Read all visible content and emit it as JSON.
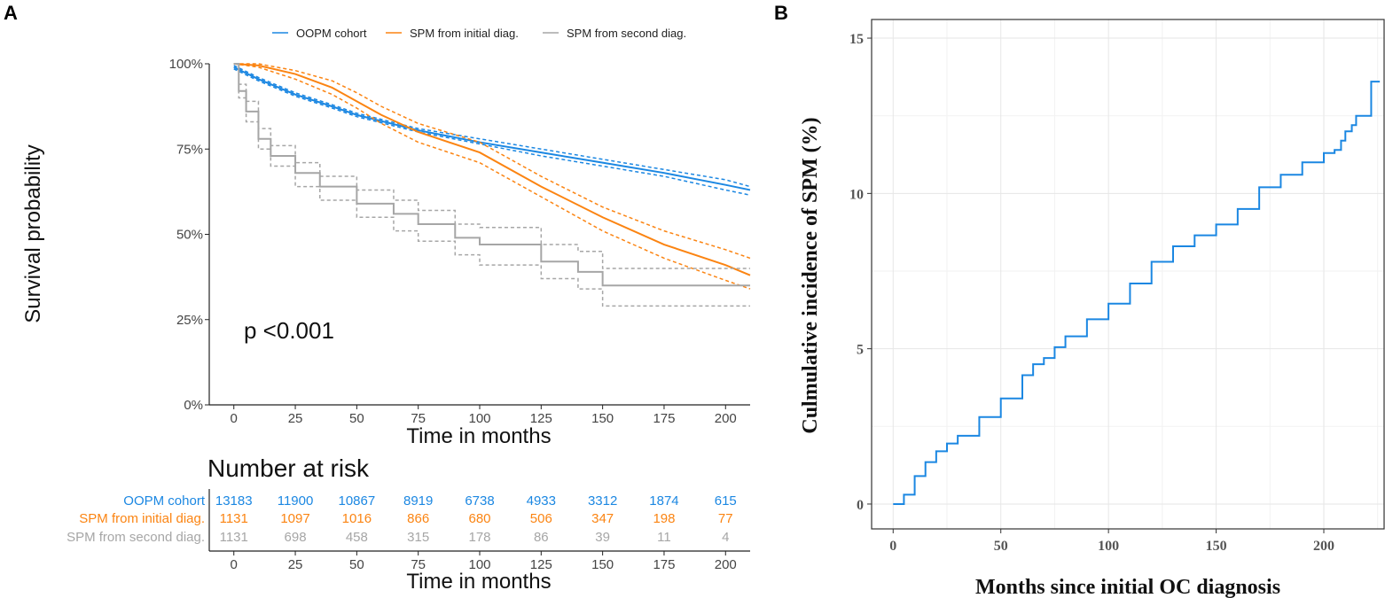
{
  "colors": {
    "oopm": "#1b87e2",
    "initial": "#fb8412",
    "second": "#a6a6a6"
  },
  "chart_data": [
    {
      "panel_label": "A",
      "type": "line",
      "subtype": "kaplan-meier",
      "title": "",
      "xlabel": "Time in months",
      "ylabel": "Survival probability",
      "xlim": [
        -10,
        210
      ],
      "ylim": [
        0,
        100
      ],
      "x_ticks": [
        0,
        25,
        50,
        75,
        100,
        125,
        150,
        175,
        200
      ],
      "y_ticks": [
        0,
        25,
        50,
        75,
        100
      ],
      "y_tick_labels": [
        "0%",
        "25%",
        "50%",
        "75%",
        "100%"
      ],
      "legend": [
        "OOPM cohort",
        "SPM from initial diag.",
        "SPM from second diag."
      ],
      "legend_position": "top",
      "annotation": "p <0.001",
      "series": [
        {
          "name": "OOPM cohort",
          "color_key": "oopm",
          "x": [
            0,
            10,
            25,
            40,
            50,
            75,
            100,
            125,
            150,
            175,
            200,
            210
          ],
          "y": [
            99,
            95.5,
            91,
            87.5,
            85,
            80.5,
            77,
            74,
            71,
            68,
            64.5,
            63
          ],
          "lower": [
            98.5,
            95,
            90.5,
            87,
            84.5,
            80,
            76.5,
            73,
            70,
            67,
            63,
            61.5
          ],
          "upper": [
            99.5,
            96,
            91.5,
            88,
            85.5,
            81,
            78,
            75,
            72,
            69,
            66,
            64
          ]
        },
        {
          "name": "SPM from initial diag.",
          "color_key": "initial",
          "x": [
            0,
            10,
            25,
            40,
            50,
            60,
            75,
            100,
            125,
            150,
            175,
            200,
            210
          ],
          "y": [
            100,
            99.5,
            97,
            93,
            89,
            85,
            80,
            74,
            64,
            55,
            47,
            41,
            38
          ],
          "lower": [
            100,
            99,
            95.5,
            91,
            87,
            82.5,
            77,
            71,
            61,
            51,
            43,
            36.5,
            34
          ],
          "upper": [
            100,
            100,
            98,
            95,
            91.5,
            87.5,
            82.5,
            77,
            67,
            58,
            51,
            45.5,
            43
          ]
        },
        {
          "name": "SPM from second diag.",
          "color_key": "second",
          "x": [
            0,
            2,
            5,
            10,
            15,
            25,
            35,
            50,
            65,
            75,
            90,
            100,
            125,
            140,
            150,
            175,
            200,
            210
          ],
          "y": [
            100,
            92,
            86,
            78,
            73,
            68,
            64,
            59,
            56,
            53,
            49,
            47,
            42,
            39,
            35,
            35,
            35,
            35
          ],
          "lower": [
            100,
            90,
            83,
            75,
            70,
            64,
            60,
            55,
            51,
            48,
            44,
            41,
            37,
            34,
            29,
            29,
            29,
            29
          ],
          "upper": [
            100,
            94,
            89,
            81,
            76,
            71,
            67,
            63,
            60,
            57,
            53,
            52,
            47,
            45,
            40,
            40,
            40,
            40
          ]
        }
      ],
      "risk_table": {
        "title": "Number at risk",
        "xlabel": "Time in months",
        "times": [
          0,
          25,
          50,
          75,
          100,
          125,
          150,
          175,
          200
        ],
        "rows": [
          {
            "label": "OOPM cohort",
            "color_key": "oopm",
            "values": [
              "13183",
              "11900",
              "10867",
              "8919",
              "6738",
              "4933",
              "3312",
              "1874",
              "615"
            ]
          },
          {
            "label": "SPM from initial diag.",
            "color_key": "initial",
            "values": [
              "1131",
              "1097",
              "1016",
              "866",
              "680",
              "506",
              "347",
              "198",
              "77"
            ]
          },
          {
            "label": "SPM from second diag.",
            "color_key": "second",
            "values": [
              "1131",
              "698",
              "458",
              "315",
              "178",
              "86",
              "39",
              "11",
              "4"
            ]
          }
        ]
      }
    },
    {
      "panel_label": "B",
      "type": "line",
      "subtype": "cumulative-incidence-step",
      "title": "",
      "xlabel": "Months since initial OC diagnosis",
      "ylabel": "Culmulative incidence of SPM (%)",
      "xlim": [
        -10,
        228
      ],
      "ylim": [
        -0.8,
        15.6
      ],
      "x_ticks": [
        0,
        50,
        100,
        150,
        200
      ],
      "y_ticks": [
        0,
        5,
        10,
        15
      ],
      "color_key": "oopm",
      "x": [
        0,
        3,
        5,
        10,
        15,
        20,
        25,
        30,
        40,
        50,
        60,
        65,
        70,
        75,
        80,
        90,
        100,
        110,
        120,
        130,
        140,
        150,
        160,
        170,
        180,
        190,
        200,
        205,
        208,
        210,
        213,
        215,
        218,
        222,
        226
      ],
      "y": [
        0,
        0,
        0.3,
        0.9,
        1.35,
        1.7,
        1.95,
        2.2,
        2.8,
        3.4,
        4.15,
        4.5,
        4.7,
        5.05,
        5.4,
        5.95,
        6.45,
        7.1,
        7.8,
        8.3,
        8.65,
        9.0,
        9.5,
        10.2,
        10.6,
        11.0,
        11.3,
        11.4,
        11.7,
        12.0,
        12.2,
        12.5,
        12.5,
        13.6,
        13.6
      ]
    }
  ]
}
